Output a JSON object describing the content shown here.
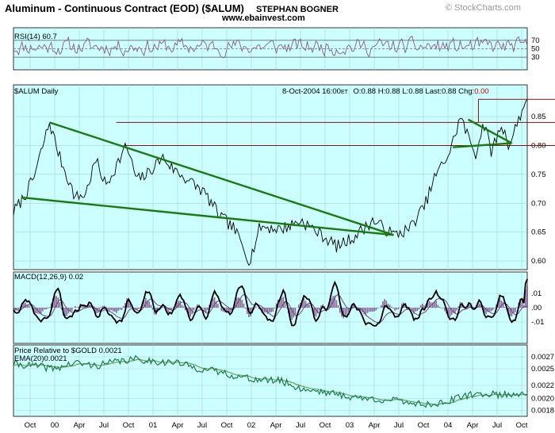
{
  "chart_data": {
    "type": "line",
    "title": "Aluminum - Continuous Contract (EOD) ($ALUM)",
    "author": "STEPHAN BOGNER",
    "website": "www.ebainvest.com",
    "brand": "© StockCharts.com",
    "x_ticks": [
      "Oct",
      "00",
      "Apr",
      "Jul",
      "Oct",
      "01",
      "Apr",
      "Jul",
      "Oct",
      "02",
      "Apr",
      "Jul",
      "Oct",
      "03",
      "Apr",
      "Jul",
      "Oct",
      "04",
      "Apr",
      "Jul",
      "Oct"
    ],
    "panels": [
      {
        "id": "rsi",
        "label": "RSI(14)",
        "value": "60.7",
        "ylim": [
          0,
          100
        ],
        "reference_lines": [
          30,
          50,
          70
        ],
        "y_ticks": [
          "70",
          "50",
          "30"
        ],
        "y_tick_values": [
          70,
          50,
          30
        ]
      },
      {
        "id": "price",
        "label": "$ALUM Daily",
        "quote": {
          "date": "8-Oct-2004 16:00",
          "tz": "ET",
          "open": "O:0.88",
          "high": "H:0.88",
          "low": "L:0.88",
          "last": "Last:0.88",
          "chg_label": "Chg:",
          "chg_value": "0.00"
        },
        "ylim": [
          0.585,
          0.905
        ],
        "y_ticks": [
          "0.85",
          "0.80",
          "0.75",
          "0.70",
          "0.65",
          "0.60"
        ],
        "y_tick_values": [
          0.85,
          0.8,
          0.75,
          0.7,
          0.65,
          0.6
        ],
        "horizontal_lines": [
          0.88,
          0.84,
          0.8
        ],
        "anchors": [
          [
            0.0,
            0.685
          ],
          [
            0.02,
            0.71
          ],
          [
            0.04,
            0.745
          ],
          [
            0.07,
            0.84
          ],
          [
            0.09,
            0.78
          ],
          [
            0.12,
            0.71
          ],
          [
            0.14,
            0.715
          ],
          [
            0.16,
            0.775
          ],
          [
            0.18,
            0.73
          ],
          [
            0.22,
            0.8
          ],
          [
            0.24,
            0.74
          ],
          [
            0.26,
            0.75
          ],
          [
            0.29,
            0.78
          ],
          [
            0.31,
            0.76
          ],
          [
            0.34,
            0.74
          ],
          [
            0.37,
            0.72
          ],
          [
            0.4,
            0.68
          ],
          [
            0.43,
            0.655
          ],
          [
            0.46,
            0.6
          ],
          [
            0.48,
            0.66
          ],
          [
            0.52,
            0.655
          ],
          [
            0.56,
            0.67
          ],
          [
            0.6,
            0.645
          ],
          [
            0.63,
            0.625
          ],
          [
            0.66,
            0.64
          ],
          [
            0.7,
            0.67
          ],
          [
            0.74,
            0.645
          ],
          [
            0.77,
            0.655
          ],
          [
            0.8,
            0.695
          ],
          [
            0.82,
            0.745
          ],
          [
            0.85,
            0.79
          ],
          [
            0.87,
            0.85
          ],
          [
            0.885,
            0.815
          ],
          [
            0.9,
            0.785
          ],
          [
            0.915,
            0.84
          ],
          [
            0.93,
            0.79
          ],
          [
            0.95,
            0.835
          ],
          [
            0.965,
            0.8
          ],
          [
            0.985,
            0.85
          ],
          [
            1.0,
            0.88
          ]
        ],
        "trendlines": [
          {
            "color": "#1b7a0e",
            "from": [
              0.07,
              0.84
            ],
            "to": [
              0.74,
              0.645
            ]
          },
          {
            "color": "#1b7a0e",
            "from": [
              0.015,
              0.71
            ],
            "to": [
              0.74,
              0.645
            ]
          },
          {
            "color": "#1b7a0e",
            "from": [
              0.885,
              0.845
            ],
            "to": [
              0.97,
              0.804
            ]
          },
          {
            "color": "#1b7a0e",
            "from": [
              0.855,
              0.797
            ],
            "to": [
              0.97,
              0.804
            ]
          }
        ]
      },
      {
        "id": "macd",
        "label": "MACD(12,26,9)",
        "value": "0.02",
        "ylim": [
          -0.025,
          0.025
        ],
        "y_ticks": [
          ".01",
          ".00",
          "-.01"
        ],
        "y_tick_values": [
          0.01,
          0.0,
          -0.01
        ]
      },
      {
        "id": "relative",
        "label": "Price Relative to $GOLD",
        "value": "0.0021",
        "ema_label": "EMA(20)",
        "ema_value": "0.0021",
        "ylim": [
          0.0017,
          0.0029
        ],
        "y_ticks": [
          "0.0027",
          "0.0025",
          "0.0022",
          "0.0020",
          "0.0018"
        ],
        "y_tick_values": [
          0.0027,
          0.0025,
          0.00222,
          0.002,
          0.0018
        ],
        "anchors": [
          [
            0.0,
            0.00258
          ],
          [
            0.04,
            0.00255
          ],
          [
            0.08,
            0.0025
          ],
          [
            0.12,
            0.0026
          ],
          [
            0.16,
            0.00255
          ],
          [
            0.2,
            0.00262
          ],
          [
            0.24,
            0.00266
          ],
          [
            0.28,
            0.00262
          ],
          [
            0.32,
            0.0026
          ],
          [
            0.36,
            0.0025
          ],
          [
            0.4,
            0.00245
          ],
          [
            0.44,
            0.00236
          ],
          [
            0.48,
            0.00231
          ],
          [
            0.52,
            0.0023
          ],
          [
            0.56,
            0.00216
          ],
          [
            0.6,
            0.00212
          ],
          [
            0.64,
            0.00205
          ],
          [
            0.68,
            0.002
          ],
          [
            0.72,
            0.00198
          ],
          [
            0.76,
            0.00195
          ],
          [
            0.8,
            0.0019
          ],
          [
            0.84,
            0.00193
          ],
          [
            0.88,
            0.00205
          ],
          [
            0.92,
            0.00208
          ],
          [
            0.96,
            0.00206
          ],
          [
            1.0,
            0.0021
          ]
        ]
      }
    ],
    "colors": {
      "panel_bg": "#ccffff",
      "price_line": "#000000",
      "rsi_line": "#8a5a8a",
      "macd_line": "#000000",
      "macd_signal": "#7a3f7a",
      "relative_line": "#1e7a4a",
      "ema_line": "#6aa05a",
      "resistance": "#8a1010",
      "trendline": "#1b7a0e",
      "chg_value": "#cc0000",
      "ema_label": "#1e7a4a"
    }
  }
}
